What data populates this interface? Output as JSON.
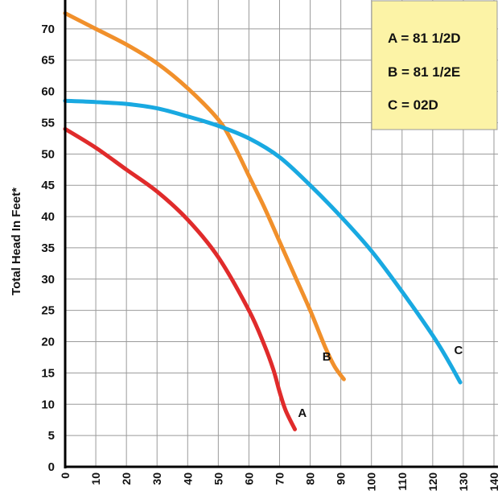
{
  "chart_data": {
    "type": "line",
    "title": "",
    "xlabel": "",
    "ylabel": "Total Head In Feet*",
    "xlim": [
      0,
      140
    ],
    "ylim": [
      0,
      75
    ],
    "xticks": [
      0,
      10,
      20,
      30,
      40,
      50,
      60,
      70,
      80,
      90,
      100,
      110,
      120,
      130,
      140
    ],
    "yticks": [
      0,
      5,
      10,
      15,
      20,
      25,
      30,
      35,
      40,
      45,
      50,
      55,
      60,
      65,
      70
    ],
    "grid": true,
    "legend": {
      "position": "top-right",
      "entries": [
        "A = 81 1/2D",
        "B = 81 1/2E",
        "C = 02D"
      ]
    },
    "series": [
      {
        "name": "A",
        "color": "#e02b2b",
        "x": [
          0,
          10,
          20,
          30,
          40,
          50,
          60,
          65,
          68,
          70,
          72,
          75
        ],
        "y": [
          54,
          51,
          47.5,
          44,
          39.5,
          33.5,
          25,
          19.5,
          15.5,
          12,
          9,
          6
        ]
      },
      {
        "name": "B",
        "color": "#f1902b",
        "x": [
          0,
          10,
          20,
          30,
          40,
          50,
          55,
          60,
          65,
          70,
          75,
          80,
          85,
          88,
          91
        ],
        "y": [
          72.5,
          70,
          67.5,
          64.5,
          60.5,
          55.5,
          51.5,
          46.5,
          41.5,
          36,
          30.5,
          25,
          19,
          16,
          14
        ]
      },
      {
        "name": "C",
        "color": "#19a9e1",
        "x": [
          0,
          10,
          20,
          30,
          40,
          50,
          60,
          70,
          80,
          90,
          100,
          110,
          120,
          125,
          129
        ],
        "y": [
          58.5,
          58.3,
          58,
          57.3,
          56,
          54.5,
          52.5,
          49.5,
          45,
          40,
          34.5,
          28,
          21,
          17,
          13.5
        ]
      }
    ],
    "annotations": [
      {
        "text": "A",
        "x": 76,
        "y": 8
      },
      {
        "text": "B",
        "x": 84,
        "y": 17
      },
      {
        "text": "C",
        "x": 127,
        "y": 18
      }
    ]
  }
}
